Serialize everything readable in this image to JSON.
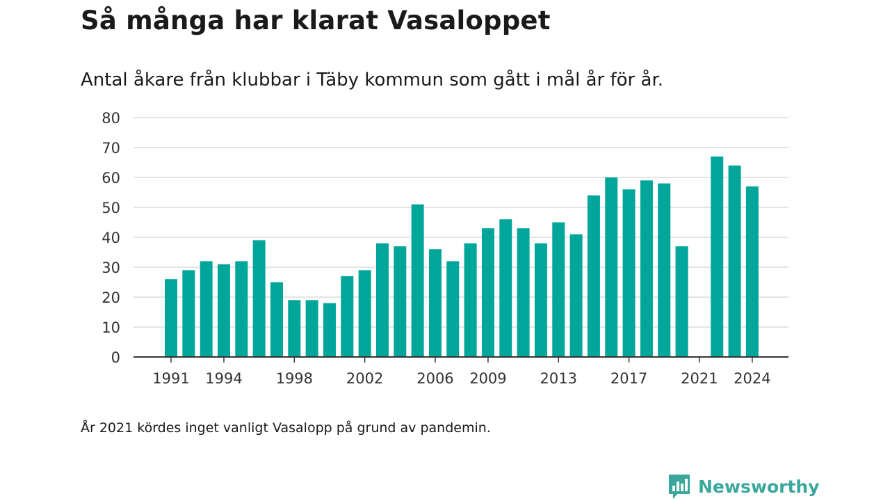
{
  "header": {
    "title": "Så många har klarat Vasaloppet",
    "subtitle": "Antal åkare från klubbar i Täby kommun som gått i mål år för år."
  },
  "footer": {
    "note": "År 2021 kördes inget vanligt Vasalopp på grund av pandemin.",
    "brand": "Newsworthy"
  },
  "colors": {
    "bar": "#00a699",
    "grid": "#dcdcdc",
    "axis": "#333333",
    "brand": "#3aa79c"
  },
  "chart_data": {
    "type": "bar",
    "categories": [
      1991,
      1992,
      1993,
      1994,
      1995,
      1996,
      1997,
      1998,
      1999,
      2000,
      2001,
      2002,
      2003,
      2004,
      2005,
      2006,
      2007,
      2008,
      2009,
      2010,
      2011,
      2012,
      2013,
      2014,
      2015,
      2016,
      2017,
      2018,
      2019,
      2020,
      2021,
      2022,
      2023,
      2024
    ],
    "values": [
      26,
      29,
      32,
      31,
      32,
      39,
      25,
      19,
      19,
      18,
      27,
      29,
      38,
      37,
      51,
      36,
      32,
      38,
      43,
      46,
      43,
      38,
      45,
      41,
      54,
      60,
      56,
      59,
      58,
      37,
      null,
      67,
      64,
      57
    ],
    "x_tick_labels": [
      "1991",
      "1994",
      "1998",
      "2002",
      "2006",
      "2009",
      "2013",
      "2017",
      "2021",
      "2024"
    ],
    "y_ticks": [
      0,
      10,
      20,
      30,
      40,
      50,
      60,
      70,
      80
    ],
    "ylim": [
      0,
      80
    ],
    "grid": true,
    "legend": "none"
  }
}
